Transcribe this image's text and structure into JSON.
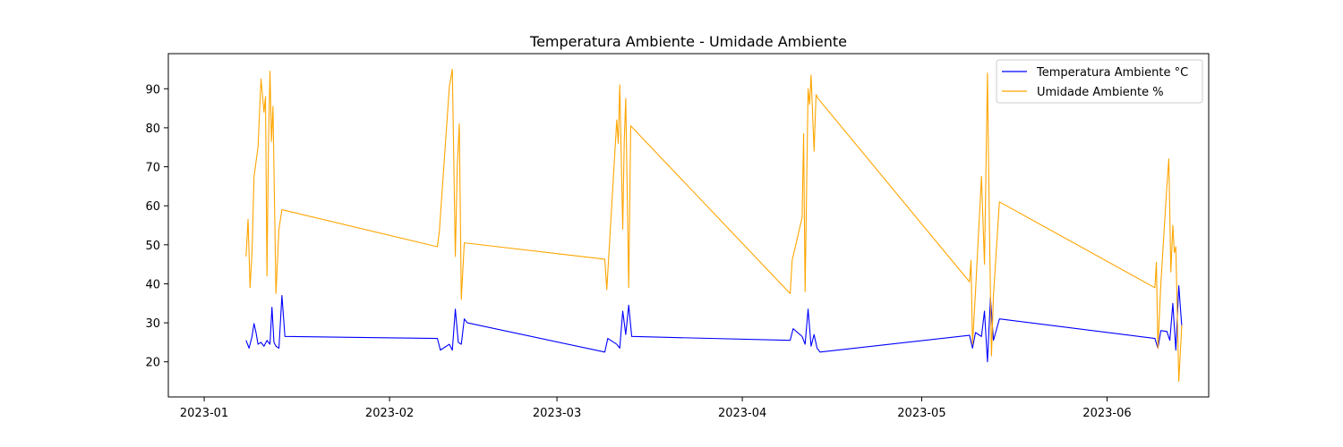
{
  "chart_data": {
    "type": "line",
    "title": "Temperatura Ambiente - Umidade Ambiente",
    "xlabel": "",
    "ylabel": "",
    "x_axis_type": "date",
    "xlim": [
      "2022-12-26",
      "2023-06-18"
    ],
    "ylim": [
      11,
      99
    ],
    "x_ticks": [
      "2023-01-01",
      "2023-02-01",
      "2023-03-01",
      "2023-04-01",
      "2023-05-01",
      "2023-06-01"
    ],
    "x_tick_labels": [
      "2023-01",
      "2023-02",
      "2023-03",
      "2023-04",
      "2023-05",
      "2023-06"
    ],
    "y_ticks": [
      20,
      30,
      40,
      50,
      60,
      70,
      80,
      90
    ],
    "grid": false,
    "legend_position": "top-right",
    "series": [
      {
        "name": "Temperatura Ambiente °C",
        "color": "#0000ff",
        "points": [
          [
            "2023-01-08 00:00",
            25.5
          ],
          [
            "2023-01-08 12:00",
            23.5
          ],
          [
            "2023-01-09 00:00",
            26.5
          ],
          [
            "2023-01-09 08:00",
            29.8
          ],
          [
            "2023-01-09 16:00",
            27.5
          ],
          [
            "2023-01-10 00:00",
            24.5
          ],
          [
            "2023-01-10 12:00",
            25.0
          ],
          [
            "2023-01-11 00:00",
            24.0
          ],
          [
            "2023-01-11 12:00",
            25.5
          ],
          [
            "2023-01-12 00:00",
            24.5
          ],
          [
            "2023-01-12 08:00",
            34.0
          ],
          [
            "2023-01-12 16:00",
            25.0
          ],
          [
            "2023-01-13 00:00",
            24.0
          ],
          [
            "2023-01-13 12:00",
            23.5
          ],
          [
            "2023-01-14 00:00",
            37.0
          ],
          [
            "2023-01-14 12:00",
            26.5
          ],
          [
            "2023-02-09 00:00",
            26.0
          ],
          [
            "2023-02-09 12:00",
            23.0
          ],
          [
            "2023-02-11 00:00",
            24.5
          ],
          [
            "2023-02-11 12:00",
            23.0
          ],
          [
            "2023-02-12 00:00",
            33.5
          ],
          [
            "2023-02-12 12:00",
            25.0
          ],
          [
            "2023-02-13 00:00",
            24.5
          ],
          [
            "2023-02-13 12:00",
            31.0
          ],
          [
            "2023-02-14 00:00",
            30.0
          ],
          [
            "2023-03-09 00:00",
            22.5
          ],
          [
            "2023-03-09 12:00",
            26.0
          ],
          [
            "2023-03-11 00:00",
            24.5
          ],
          [
            "2023-03-11 12:00",
            23.5
          ],
          [
            "2023-03-12 00:00",
            33.0
          ],
          [
            "2023-03-12 12:00",
            27.0
          ],
          [
            "2023-03-13 00:00",
            34.5
          ],
          [
            "2023-03-13 12:00",
            26.5
          ],
          [
            "2023-04-09 00:00",
            25.5
          ],
          [
            "2023-04-09 12:00",
            28.5
          ],
          [
            "2023-04-11 00:00",
            26.5
          ],
          [
            "2023-04-11 12:00",
            24.5
          ],
          [
            "2023-04-12 00:00",
            33.5
          ],
          [
            "2023-04-12 12:00",
            24.0
          ],
          [
            "2023-04-13 00:00",
            27.0
          ],
          [
            "2023-04-13 12:00",
            23.5
          ],
          [
            "2023-04-14 00:00",
            22.5
          ],
          [
            "2023-05-09 00:00",
            26.8
          ],
          [
            "2023-05-09 12:00",
            23.5
          ],
          [
            "2023-05-10 00:00",
            27.5
          ],
          [
            "2023-05-11 00:00",
            26.5
          ],
          [
            "2023-05-11 12:00",
            33.0
          ],
          [
            "2023-05-12 00:00",
            20.0
          ],
          [
            "2023-05-12 12:00",
            36.5
          ],
          [
            "2023-05-13 00:00",
            25.5
          ],
          [
            "2023-05-14 00:00",
            31.0
          ],
          [
            "2023-06-09 00:00",
            26.0
          ],
          [
            "2023-06-09 12:00",
            23.5
          ],
          [
            "2023-06-10 00:00",
            28.0
          ],
          [
            "2023-06-11 00:00",
            27.8
          ],
          [
            "2023-06-11 12:00",
            25.5
          ],
          [
            "2023-06-12 00:00",
            35.0
          ],
          [
            "2023-06-12 12:00",
            23.0
          ],
          [
            "2023-06-13 00:00",
            39.5
          ],
          [
            "2023-06-13 12:00",
            29.0
          ]
        ]
      },
      {
        "name": "Umidade Ambiente %",
        "color": "#ffa500",
        "points": [
          [
            "2023-01-08 00:00",
            47.0
          ],
          [
            "2023-01-08 08:00",
            56.5
          ],
          [
            "2023-01-08 16:00",
            39.0
          ],
          [
            "2023-01-09 00:00",
            48.0
          ],
          [
            "2023-01-09 08:00",
            67.5
          ],
          [
            "2023-01-10 00:00",
            75.0
          ],
          [
            "2023-01-10 12:00",
            92.5
          ],
          [
            "2023-01-11 00:00",
            84.0
          ],
          [
            "2023-01-11 06:00",
            88.0
          ],
          [
            "2023-01-11 12:00",
            42.0
          ],
          [
            "2023-01-11 18:00",
            76.0
          ],
          [
            "2023-01-12 00:00",
            94.5
          ],
          [
            "2023-01-12 06:00",
            76.5
          ],
          [
            "2023-01-12 12:00",
            85.5
          ],
          [
            "2023-01-13 00:00",
            37.5
          ],
          [
            "2023-01-13 12:00",
            54.0
          ],
          [
            "2023-01-14 00:00",
            59.0
          ],
          [
            "2023-02-09 00:00",
            49.5
          ],
          [
            "2023-02-09 08:00",
            53.5
          ],
          [
            "2023-02-11 00:00",
            90.5
          ],
          [
            "2023-02-11 12:00",
            95.0
          ],
          [
            "2023-02-12 00:00",
            47.0
          ],
          [
            "2023-02-12 08:00",
            70.5
          ],
          [
            "2023-02-12 16:00",
            81.0
          ],
          [
            "2023-02-13 00:00",
            36.0
          ],
          [
            "2023-02-13 12:00",
            50.5
          ],
          [
            "2023-03-09 00:00",
            46.3
          ],
          [
            "2023-03-09 08:00",
            38.5
          ],
          [
            "2023-03-11 00:00",
            82.0
          ],
          [
            "2023-03-11 06:00",
            76.0
          ],
          [
            "2023-03-11 12:00",
            91.0
          ],
          [
            "2023-03-12 00:00",
            54.0
          ],
          [
            "2023-03-12 06:00",
            76.5
          ],
          [
            "2023-03-12 12:00",
            87.5
          ],
          [
            "2023-03-13 00:00",
            39.0
          ],
          [
            "2023-03-13 08:00",
            80.5
          ],
          [
            "2023-04-09 00:00",
            37.5
          ],
          [
            "2023-04-09 08:00",
            46.0
          ],
          [
            "2023-04-11 00:00",
            57.0
          ],
          [
            "2023-04-11 06:00",
            78.5
          ],
          [
            "2023-04-11 12:00",
            38.0
          ],
          [
            "2023-04-12 00:00",
            90.0
          ],
          [
            "2023-04-12 06:00",
            86.0
          ],
          [
            "2023-04-12 12:00",
            93.5
          ],
          [
            "2023-04-13 00:00",
            74.0
          ],
          [
            "2023-04-13 08:00",
            88.5
          ],
          [
            "2023-04-13 16:00",
            87.5
          ],
          [
            "2023-05-09 00:00",
            40.5
          ],
          [
            "2023-05-09 06:00",
            46.0
          ],
          [
            "2023-05-09 12:00",
            24.5
          ],
          [
            "2023-05-10 00:00",
            38.0
          ],
          [
            "2023-05-11 00:00",
            67.5
          ],
          [
            "2023-05-11 12:00",
            45.0
          ],
          [
            "2023-05-12 00:00",
            94.0
          ],
          [
            "2023-05-12 08:00",
            54.0
          ],
          [
            "2023-05-12 16:00",
            21.5
          ],
          [
            "2023-05-13 00:00",
            37.0
          ],
          [
            "2023-05-14 00:00",
            61.0
          ],
          [
            "2023-06-09 00:00",
            39.0
          ],
          [
            "2023-06-09 06:00",
            45.5
          ],
          [
            "2023-06-09 12:00",
            23.5
          ],
          [
            "2023-06-10 00:00",
            40.0
          ],
          [
            "2023-06-11 00:00",
            65.0
          ],
          [
            "2023-06-11 08:00",
            72.0
          ],
          [
            "2023-06-11 16:00",
            43.0
          ],
          [
            "2023-06-12 00:00",
            55.0
          ],
          [
            "2023-06-12 06:00",
            48.0
          ],
          [
            "2023-06-12 12:00",
            49.5
          ],
          [
            "2023-06-13 00:00",
            15.0
          ],
          [
            "2023-06-13 12:00",
            29.5
          ]
        ]
      }
    ]
  }
}
